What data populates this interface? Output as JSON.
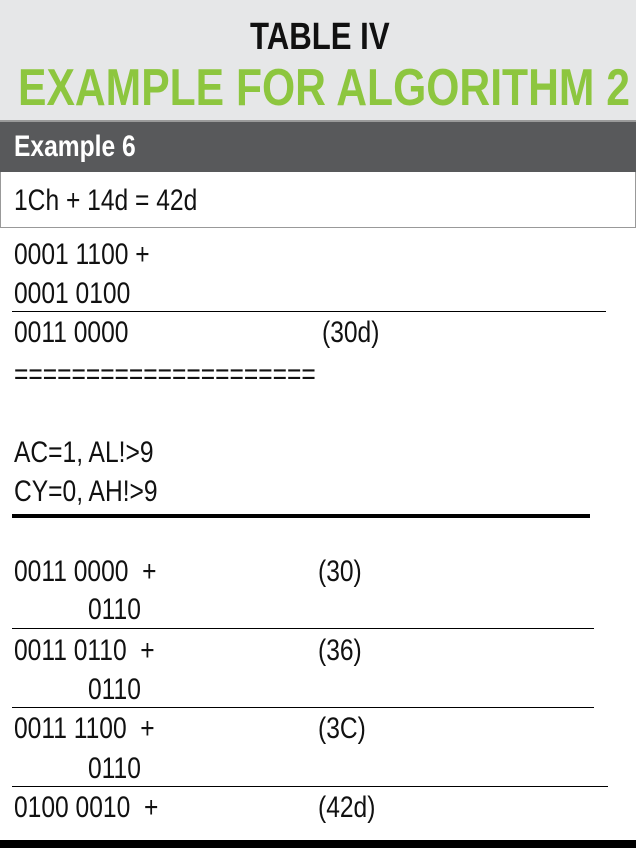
{
  "header": {
    "title": "TABLE IV",
    "subtitle": "EXAMPLE FOR ALGORITHM 2"
  },
  "example": {
    "label": "Example 6",
    "equation": "1Ch + 14d = 42d"
  },
  "rows": [
    {
      "left": "0001 1100 +"
    },
    {
      "left": "0001 0100"
    },
    {
      "left": "0011 0000",
      "right": "(30d)"
    },
    {
      "left": "====================="
    },
    {
      "left": "AC=1, AL!>9"
    },
    {
      "left": "CY=0, AH!>9"
    },
    {
      "left": "0011 0000  +",
      "right": "(30)"
    },
    {
      "left": "0110"
    },
    {
      "left": "0011 0110  +",
      "right": "(36)"
    },
    {
      "left": "0110"
    },
    {
      "left": "0011 1100  +",
      "right": "(3C)"
    },
    {
      "left": "0110"
    },
    {
      "left": "0100 0010  +",
      "right": "(42d)"
    }
  ]
}
